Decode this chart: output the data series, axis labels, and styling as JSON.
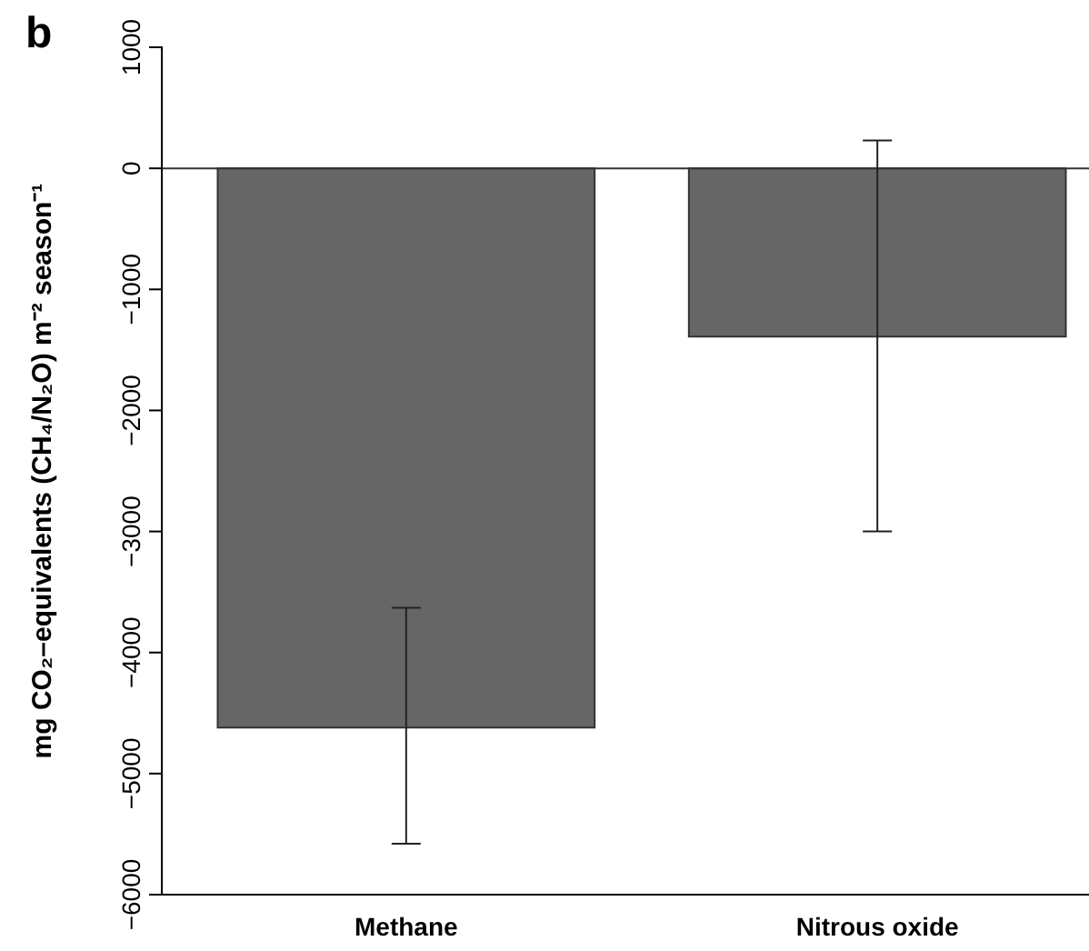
{
  "chart_data": {
    "type": "bar",
    "title": "b",
    "ylabel": "mg CO₂–equivalents (CH₄/N₂O) m⁻² season⁻¹",
    "categories": [
      "Methane",
      "Nitrous oxide"
    ],
    "values": [
      -4620,
      -1390
    ],
    "errors": [
      [
        -5580,
        -3630
      ],
      [
        -3000,
        230
      ]
    ],
    "color": "#666666",
    "ylim": [
      -6000,
      1000
    ],
    "yticks": [
      -6000,
      -5000,
      -4000,
      -3000,
      -2000,
      -1000,
      0,
      1000
    ],
    "ref_lines": [
      {
        "axis": "y",
        "value": 0,
        "label": null,
        "color": "#333333"
      }
    ]
  }
}
